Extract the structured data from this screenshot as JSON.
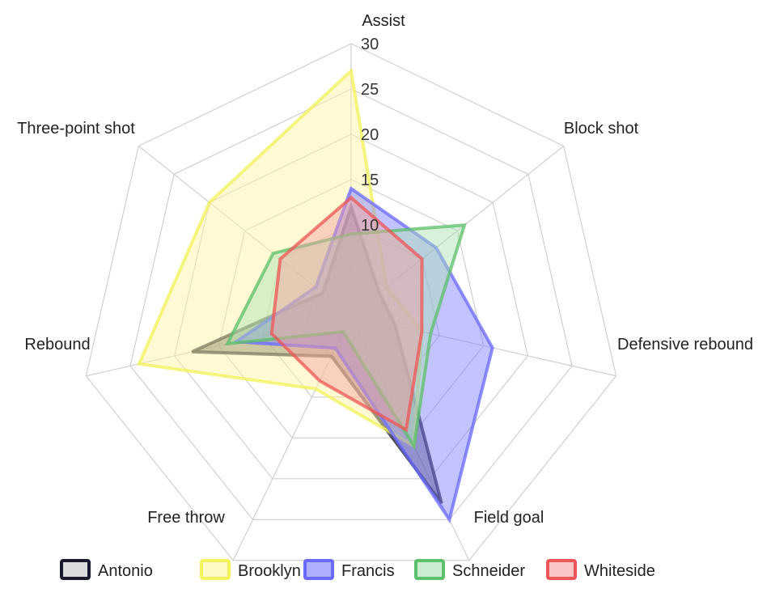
{
  "chart_data": {
    "type": "radar",
    "categories": [
      "Assist",
      "Block shot",
      "Defensive rebound",
      "Field goal",
      "Free throw",
      "Rebound",
      "Three-point shot"
    ],
    "rlim": [
      0,
      30
    ],
    "ticks": [
      10,
      15,
      20,
      25,
      30
    ],
    "tick_labels": [
      "10",
      "15",
      "20",
      "25",
      "30"
    ],
    "grid": true,
    "legend_position": "bottom",
    "series": [
      {
        "name": "Antonio",
        "color": "#1a1a2e",
        "fill": "#3a3a3a",
        "values": [
          12,
          4,
          5,
          23,
          5,
          18,
          4
        ]
      },
      {
        "name": "Brooklyn",
        "color": "#f2f25a",
        "fill": "#fff5a0",
        "values": [
          27,
          5,
          8,
          16,
          9,
          24,
          20
        ]
      },
      {
        "name": "Francis",
        "color": "#6a6aff",
        "fill": "#7a7aff",
        "values": [
          14,
          12,
          16,
          25,
          4,
          13,
          5
        ]
      },
      {
        "name": "Schneider",
        "color": "#5cbf6a",
        "fill": "#a8e0b0",
        "values": [
          9,
          16,
          9,
          16,
          2,
          14,
          11
        ]
      },
      {
        "name": "Whiteside",
        "color": "#ee5555",
        "fill": "#f5a0a0",
        "values": [
          13,
          10,
          8,
          14,
          8,
          9,
          10
        ]
      }
    ]
  }
}
